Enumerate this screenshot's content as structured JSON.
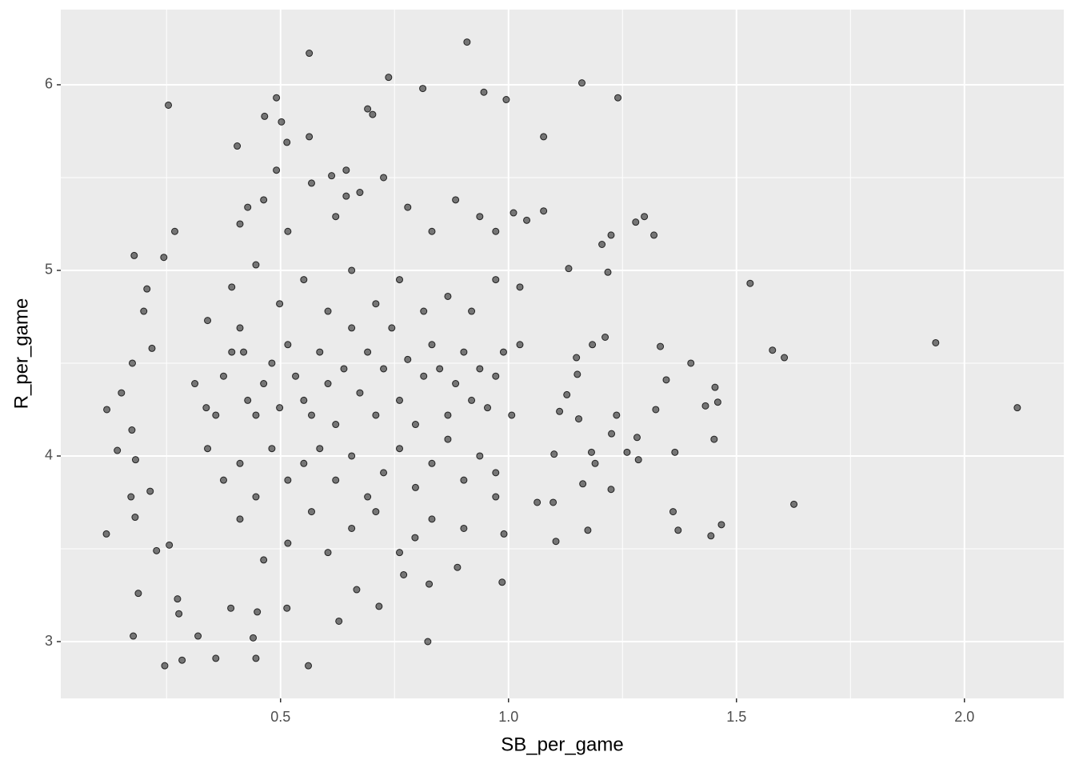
{
  "chart_data": {
    "type": "scatter",
    "x_label": "SB_per_game",
    "y_label": "R_per_game",
    "xlim": [
      0.018,
      2.218
    ],
    "ylim": [
      2.694,
      6.405
    ],
    "xticks": [
      0.5,
      {
        "value": 1.0,
        "label": "1.0"
      },
      1.5,
      {
        "value": 2.0,
        "label": "2.0"
      }
    ],
    "yticks": [
      3,
      4,
      5,
      6
    ],
    "xminor": [
      0.25,
      0.75,
      1.25,
      1.75
    ],
    "yminor": [
      3.5,
      4.5,
      5.5
    ],
    "grid": true,
    "color": "#000000",
    "alpha": 0.5,
    "x": [
      2.116,
      1.937,
      1.53,
      1.579,
      1.605,
      1.626,
      1.24,
      1.161,
      0.909,
      0.563,
      0.737,
      0.812,
      0.946,
      0.995,
      0.254,
      0.561,
      0.823,
      0.177,
      0.246,
      0.284,
      0.358,
      0.446,
      0.118,
      0.119,
      0.151,
      0.179,
      0.207,
      1.282,
      1.444,
      1.467,
      1.451,
      1.459,
      1.453,
      1.432,
      1.4,
      1.346,
      1.333,
      1.323,
      1.319,
      1.298,
      1.279,
      1.225,
      1.218,
      1.205,
      1.212,
      1.184,
      1.149,
      1.132,
      1.077,
      1.077,
      1.011,
      1.04,
      1.151,
      1.154,
      1.163,
      1.174,
      1.182,
      1.19,
      1.226,
      1.237,
      1.225,
      1.26,
      1.285,
      1.365,
      1.361,
      1.372,
      1.104,
      1.098,
      1.063,
      1.1,
      1.112,
      1.128,
      0.986,
      0.99,
      0.888,
      0.826,
      0.795,
      0.77,
      0.716,
      0.667,
      0.628,
      0.514,
      0.44,
      0.449,
      0.391,
      0.319,
      0.277,
      0.274,
      0.188,
      0.228,
      0.256,
      0.181,
      0.172,
      0.214,
      0.182,
      0.142,
      0.174,
      0.175,
      0.218,
      0.2,
      0.268,
      0.244,
      0.312,
      0.337,
      0.358,
      0.375,
      0.393,
      0.411,
      0.419,
      0.428,
      0.446,
      0.463,
      0.481,
      0.498,
      0.516,
      0.533,
      0.551,
      0.568,
      0.586,
      0.604,
      0.621,
      0.639,
      0.656,
      0.674,
      0.691,
      0.709,
      0.726,
      0.744,
      0.761,
      0.779,
      0.796,
      0.814,
      0.832,
      0.849,
      0.867,
      0.884,
      0.902,
      0.919,
      0.937,
      0.954,
      0.972,
      0.989,
      1.007,
      1.025,
      0.34,
      0.375,
      0.411,
      0.446,
      0.481,
      0.516,
      0.551,
      0.586,
      0.621,
      0.656,
      0.691,
      0.726,
      0.761,
      0.796,
      0.832,
      0.867,
      0.902,
      0.937,
      0.972,
      0.411,
      0.463,
      0.516,
      0.568,
      0.604,
      0.656,
      0.709,
      0.761,
      0.832,
      0.902,
      0.972,
      0.34,
      0.393,
      0.446,
      0.498,
      0.551,
      0.604,
      0.656,
      0.709,
      0.761,
      0.814,
      0.867,
      0.919,
      0.972,
      1.025,
      0.411,
      0.463,
      0.516,
      0.568,
      0.621,
      0.674,
      0.726,
      0.779,
      0.832,
      0.884,
      0.937,
      0.972,
      0.405,
      0.428,
      0.491,
      0.502,
      0.514,
      0.563,
      0.465,
      0.491,
      0.612,
      0.644,
      0.691,
      0.702,
      0.644
    ],
    "values": [
      4.26,
      4.61,
      4.93,
      4.57,
      4.53,
      3.74,
      5.93,
      6.01,
      6.23,
      6.17,
      6.04,
      5.98,
      5.96,
      5.92,
      5.89,
      2.87,
      3.0,
      3.03,
      2.87,
      2.9,
      2.91,
      2.91,
      3.58,
      4.25,
      4.34,
      5.08,
      4.9,
      4.1,
      3.57,
      3.63,
      4.09,
      4.29,
      4.37,
      4.27,
      4.5,
      4.41,
      4.59,
      4.25,
      5.19,
      5.29,
      5.26,
      5.19,
      4.99,
      5.14,
      4.64,
      4.6,
      4.53,
      5.01,
      5.32,
      5.72,
      5.31,
      5.27,
      4.44,
      4.2,
      3.85,
      3.6,
      4.02,
      3.96,
      4.12,
      4.22,
      3.82,
      4.02,
      3.98,
      4.02,
      3.7,
      3.6,
      3.54,
      3.75,
      3.75,
      4.01,
      4.24,
      4.33,
      3.32,
      3.58,
      3.4,
      3.31,
      3.56,
      3.36,
      3.19,
      3.28,
      3.11,
      3.18,
      3.02,
      3.16,
      3.18,
      3.03,
      3.15,
      3.23,
      3.26,
      3.49,
      3.52,
      3.67,
      3.78,
      3.81,
      3.98,
      4.03,
      4.14,
      4.5,
      4.58,
      4.78,
      5.21,
      5.07,
      4.39,
      4.26,
      4.22,
      4.43,
      4.56,
      4.69,
      4.56,
      4.3,
      4.22,
      4.39,
      4.5,
      4.26,
      4.6,
      4.43,
      4.3,
      4.22,
      4.56,
      4.39,
      4.17,
      4.47,
      4.69,
      4.34,
      4.56,
      4.22,
      4.47,
      4.69,
      4.3,
      4.52,
      4.17,
      4.43,
      4.6,
      4.47,
      4.22,
      4.39,
      4.56,
      4.3,
      4.47,
      4.26,
      4.43,
      4.56,
      4.22,
      4.6,
      4.04,
      3.87,
      3.96,
      3.78,
      4.04,
      3.87,
      3.96,
      4.04,
      3.87,
      4.0,
      3.78,
      3.91,
      4.04,
      3.83,
      3.96,
      4.09,
      3.87,
      4.0,
      3.91,
      3.66,
      3.44,
      3.53,
      3.7,
      3.48,
      3.61,
      3.7,
      3.48,
      3.66,
      3.61,
      3.78,
      4.73,
      4.91,
      5.03,
      4.82,
      4.95,
      4.78,
      5.0,
      4.82,
      4.95,
      4.78,
      4.86,
      4.78,
      4.95,
      4.91,
      5.25,
      5.38,
      5.21,
      5.47,
      5.29,
      5.42,
      5.5,
      5.34,
      5.21,
      5.38,
      5.29,
      5.21,
      5.67,
      5.34,
      5.54,
      5.8,
      5.69,
      5.72,
      5.83,
      5.93,
      5.51,
      5.54,
      5.87,
      5.84,
      5.4
    ]
  }
}
